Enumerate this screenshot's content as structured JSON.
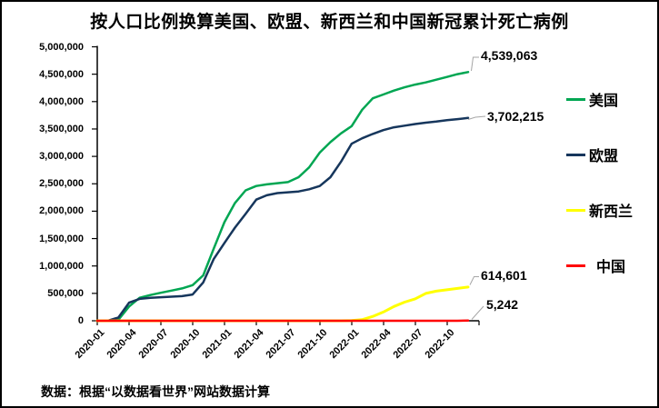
{
  "title": "按人口比例换算美国、欧盟、新西兰和中国新冠累计死亡病例",
  "source_note": "数据：根据“以数据看世界”网站数据计算",
  "colors": {
    "us": "#00A652",
    "eu": "#16365C",
    "nz": "#FFFF00",
    "cn": "#FF0000",
    "axis": "#000000",
    "leader": "#A6A6A6",
    "background": "#FFFFFF"
  },
  "chart_data": {
    "type": "line",
    "title": "按人口比例换算美国、欧盟、新西兰和中国新冠累计死亡病例",
    "xlabel": "",
    "ylabel": "",
    "ylim": [
      0,
      5000000
    ],
    "y_tick_step": 500000,
    "grid": false,
    "legend_position": "right",
    "x": [
      "2020-01",
      "2020-02",
      "2020-03",
      "2020-04",
      "2020-05",
      "2020-06",
      "2020-07",
      "2020-08",
      "2020-09",
      "2020-10",
      "2020-11",
      "2020-12",
      "2021-01",
      "2021-02",
      "2021-03",
      "2021-04",
      "2021-05",
      "2021-06",
      "2021-07",
      "2021-08",
      "2021-09",
      "2021-10",
      "2021-11",
      "2021-12",
      "2022-01",
      "2022-02",
      "2022-03",
      "2022-04",
      "2022-05",
      "2022-06",
      "2022-07",
      "2022-08",
      "2022-09",
      "2022-10",
      "2022-11",
      "2022-12"
    ],
    "x_tick_labels": [
      "2020-01",
      "2020-04",
      "2020-07",
      "2020-10",
      "2021-01",
      "2021-04",
      "2021-07",
      "2021-10",
      "2022-01",
      "2022-04",
      "2022-07",
      "2022-10"
    ],
    "y_tick_labels": [
      "0",
      "500,000",
      "1,000,000",
      "1,500,000",
      "2,000,000",
      "2,500,000",
      "3,000,000",
      "3,500,000",
      "4,000,000",
      "4,500,000",
      "5,000,000"
    ],
    "series": [
      {
        "name": "美国",
        "color": "#00A652",
        "end_label": "4,539,063",
        "end_value": 4539063,
        "values": [
          0,
          0,
          20000,
          260000,
          420000,
          470000,
          510000,
          550000,
          590000,
          650000,
          830000,
          1320000,
          1800000,
          2150000,
          2380000,
          2460000,
          2490000,
          2510000,
          2530000,
          2620000,
          2800000,
          3070000,
          3260000,
          3420000,
          3550000,
          3850000,
          4060000,
          4130000,
          4200000,
          4260000,
          4310000,
          4350000,
          4400000,
          4450000,
          4500000,
          4539063
        ]
      },
      {
        "name": "欧盟",
        "color": "#16365C",
        "end_label": "3,702,215",
        "end_value": 3702215,
        "values": [
          0,
          0,
          60000,
          330000,
          400000,
          420000,
          430000,
          440000,
          450000,
          480000,
          700000,
          1130000,
          1420000,
          1700000,
          1950000,
          2210000,
          2290000,
          2330000,
          2345000,
          2360000,
          2400000,
          2460000,
          2620000,
          2900000,
          3230000,
          3330000,
          3410000,
          3480000,
          3530000,
          3560000,
          3590000,
          3615000,
          3635000,
          3660000,
          3680000,
          3702215
        ]
      },
      {
        "name": "新西兰",
        "color": "#FFFF00",
        "end_label": "614,601",
        "end_value": 614601,
        "values": [
          0,
          0,
          0,
          0,
          0,
          0,
          0,
          0,
          0,
          0,
          0,
          0,
          0,
          0,
          0,
          0,
          0,
          0,
          0,
          0,
          0,
          0,
          0,
          0,
          5000,
          20000,
          80000,
          160000,
          260000,
          340000,
          400000,
          500000,
          540000,
          565000,
          590000,
          614601
        ]
      },
      {
        "name": "中国",
        "color": "#FF0000",
        "end_label": "5,242",
        "end_value": 5242,
        "values": [
          0,
          0,
          0,
          0,
          0,
          0,
          0,
          0,
          0,
          0,
          0,
          0,
          0,
          0,
          0,
          0,
          0,
          0,
          0,
          0,
          0,
          0,
          0,
          0,
          0,
          0,
          0,
          0,
          0,
          0,
          0,
          0,
          0,
          0,
          0,
          5242
        ]
      }
    ]
  }
}
